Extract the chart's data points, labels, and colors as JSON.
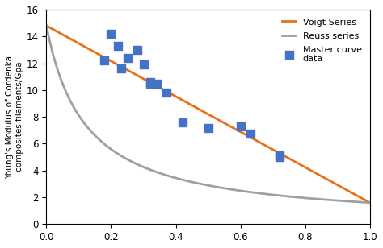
{
  "title": "",
  "xlabel": "",
  "ylabel": "Young's Modulus of Cordenka\ncomposites filaments/Gpa",
  "xlim": [
    0,
    1
  ],
  "ylim": [
    0,
    16
  ],
  "yticks": [
    0,
    2,
    4,
    6,
    8,
    10,
    12,
    14,
    16
  ],
  "xticks": [
    0,
    0.2,
    0.4,
    0.6,
    0.8,
    1.0
  ],
  "E_fiber": 14.8,
  "E_matrix": 1.6,
  "scatter_x": [
    0.18,
    0.2,
    0.22,
    0.23,
    0.25,
    0.28,
    0.3,
    0.32,
    0.32,
    0.34,
    0.37,
    0.42,
    0.5,
    0.6,
    0.63,
    0.72,
    0.72
  ],
  "scatter_y": [
    12.2,
    14.2,
    13.3,
    11.6,
    12.4,
    13.0,
    11.9,
    10.6,
    10.5,
    10.5,
    9.8,
    7.6,
    7.15,
    7.3,
    6.75,
    5.1,
    5.0
  ],
  "voigt_color": "#E8711A",
  "reuss_color": "#A0A0A0",
  "scatter_color": "#4472C4",
  "scatter_size": 45,
  "figsize": [
    4.74,
    3.08
  ],
  "dpi": 100,
  "bg_color": "#FFFFFF",
  "legend_labels": [
    "Voigt Series",
    "Reuss series",
    "Master curve\ndata"
  ]
}
